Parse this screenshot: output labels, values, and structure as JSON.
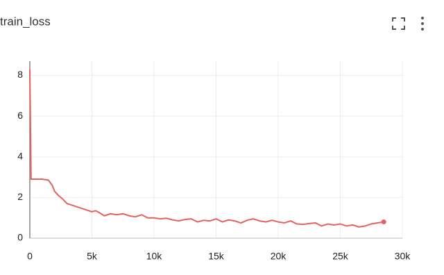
{
  "chart_data": {
    "type": "line",
    "title": "train_loss",
    "x": [
      0,
      100,
      500,
      1000,
      1500,
      1800,
      2000,
      2300,
      2600,
      3000,
      3500,
      4000,
      4500,
      5000,
      5300,
      5600,
      6000,
      6500,
      7000,
      7500,
      8000,
      8500,
      9000,
      9500,
      10000,
      10500,
      11000,
      11500,
      12000,
      12500,
      13000,
      13500,
      14000,
      14500,
      15000,
      15500,
      16000,
      16500,
      17000,
      17500,
      18000,
      18500,
      19000,
      19500,
      20000,
      20500,
      21000,
      21500,
      22000,
      22500,
      23000,
      23500,
      24000,
      24500,
      25000,
      25500,
      26000,
      26500,
      27000,
      27500,
      28000,
      28500
    ],
    "series": [
      {
        "name": "train_loss",
        "color": "#e8605c",
        "values": [
          8.3,
          2.9,
          2.9,
          2.9,
          2.85,
          2.6,
          2.3,
          2.1,
          1.95,
          1.7,
          1.6,
          1.5,
          1.4,
          1.3,
          1.35,
          1.25,
          1.1,
          1.2,
          1.15,
          1.2,
          1.1,
          1.05,
          1.15,
          1.0,
          1.0,
          0.95,
          0.98,
          0.9,
          0.85,
          0.92,
          0.95,
          0.8,
          0.88,
          0.85,
          0.95,
          0.8,
          0.9,
          0.85,
          0.75,
          0.88,
          0.95,
          0.85,
          0.8,
          0.88,
          0.8,
          0.75,
          0.85,
          0.7,
          0.68,
          0.72,
          0.75,
          0.6,
          0.7,
          0.65,
          0.7,
          0.6,
          0.65,
          0.55,
          0.6,
          0.7,
          0.75,
          0.8
        ]
      }
    ],
    "xlim": [
      0,
      30000
    ],
    "ylim": [
      0,
      8.7
    ],
    "xticks": [
      0,
      {
        "value": 5000,
        "label": "5k"
      },
      {
        "value": 10000,
        "label": "10k"
      },
      {
        "value": 15000,
        "label": "15k"
      },
      {
        "value": 20000,
        "label": "20k"
      },
      {
        "value": 25000,
        "label": "25k"
      },
      {
        "value": 30000,
        "label": "30k"
      }
    ],
    "yticks": [
      0,
      2,
      4,
      6,
      8
    ],
    "grid": true
  }
}
